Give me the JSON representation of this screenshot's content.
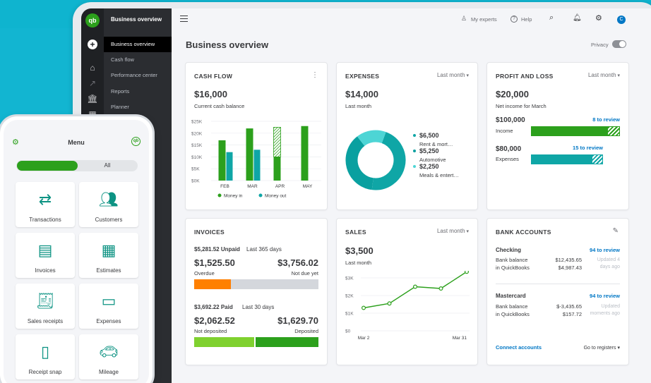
{
  "app": {
    "logo": "qb",
    "colors": {
      "brand_green": "#2ca01c",
      "teal": "#0fa6a6",
      "link_blue": "#0077c5",
      "orange": "#ff8000"
    }
  },
  "sidebar_nav": {
    "title": "Business overview",
    "items": [
      {
        "label": "Business overview",
        "active": true
      },
      {
        "label": "Cash flow"
      },
      {
        "label": "Performance center"
      },
      {
        "label": "Reports"
      },
      {
        "label": "Planner"
      }
    ],
    "icons": [
      "plus-icon",
      "home-icon",
      "chart-icon",
      "bank-icon",
      "grid-icon"
    ]
  },
  "topbar": {
    "my_experts": "My experts",
    "help": "Help",
    "avatar_initial": "C"
  },
  "page": {
    "title": "Business overview",
    "privacy_label": "Privacy"
  },
  "cash_flow": {
    "title": "CASH FLOW",
    "amount": "$16,000",
    "caption": "Current cash balance",
    "legend_in": "Money in",
    "legend_out": "Money out"
  },
  "expenses": {
    "title": "EXPENSES",
    "period": "Last month",
    "amount": "$14,000",
    "caption": "Last month",
    "items": [
      {
        "amount": "$6,500",
        "label": "Rent & mort…",
        "color": "#0fa6a6"
      },
      {
        "amount": "$5,250",
        "label": "Automotive",
        "color": "#0aa0a0"
      },
      {
        "amount": "$2,250",
        "label": "Meals & entert…",
        "color": "#4dd5d5"
      }
    ]
  },
  "profit_loss": {
    "title": "PROFIT AND LOSS",
    "period": "Last month",
    "amount": "$20,000",
    "caption": "Net income for March",
    "income_amount": "$100,000",
    "income_label": "Income",
    "income_review": "8 to review",
    "expenses_amount": "$80,000",
    "expenses_label": "Expenses",
    "expenses_review": "15 to review"
  },
  "invoices": {
    "title": "INVOICES",
    "unpaid_amount": "$5,281.52 Unpaid",
    "unpaid_period": "Last 365 days",
    "overdue_amount": "$1,525.50",
    "overdue_label": "Overdue",
    "not_due_amount": "$3,756.02",
    "not_due_label": "Not due yet",
    "paid_amount": "$3,692.22 Paid",
    "paid_period": "Last 30 days",
    "not_deposited_amount": "$2,062.52",
    "not_deposited_label": "Not deposited",
    "deposited_amount": "$1,629.70",
    "deposited_label": "Deposited"
  },
  "sales": {
    "title": "SALES",
    "period": "Last month",
    "amount": "$3,500",
    "caption": "Last month"
  },
  "bank_accounts": {
    "title": "BANK ACCOUNTS",
    "accounts": [
      {
        "name": "Checking",
        "review": "94 to review",
        "bank_balance_label": "Bank balance",
        "qb_label": "in QuickBooks",
        "bank_balance": "$12,435.65",
        "qb_balance": "$4,987.43",
        "updated": "Updated 4 days ago"
      },
      {
        "name": "Mastercard",
        "review": "94 to review",
        "bank_balance_label": "Bank balance",
        "qb_label": "in QuickBooks",
        "bank_balance": "$-3,435.65",
        "qb_balance": "$157.72",
        "updated": "Updated moments ago"
      }
    ],
    "connect": "Connect accounts",
    "registers": "Go to registers"
  },
  "phone": {
    "title": "Menu",
    "toggle_all": "All",
    "tiles": [
      {
        "label": "Transactions",
        "icon": "arrows-icon"
      },
      {
        "label": "Customers",
        "icon": "people-icon"
      },
      {
        "label": "Invoices",
        "icon": "invoice-icon"
      },
      {
        "label": "Estimates",
        "icon": "calculator-icon"
      },
      {
        "label": "Sales receipts",
        "icon": "receipt-icon"
      },
      {
        "label": "Expenses",
        "icon": "wallet-icon"
      },
      {
        "label": "Receipt snap",
        "icon": "phone-icon"
      },
      {
        "label": "Mileage",
        "icon": "car-icon"
      }
    ]
  },
  "chart_data": [
    {
      "type": "bar",
      "title": "CASH FLOW",
      "categories": [
        "FEB",
        "MAR",
        "APR",
        "MAY"
      ],
      "series": [
        {
          "name": "Money in",
          "values": [
            17,
            22,
            22.5,
            23
          ],
          "color": "#2ca01c"
        },
        {
          "name": "Money out",
          "values": [
            12,
            13,
            0,
            0
          ],
          "color": "#0fa6a6"
        }
      ],
      "projected_apr_in_solid": 10,
      "yticks": [
        "$25K",
        "$20K",
        "$15K",
        "$10K",
        "$5K",
        "$0K"
      ],
      "ylim": [
        0,
        25
      ],
      "legend": "bottom"
    },
    {
      "type": "pie",
      "title": "EXPENSES",
      "labels": [
        "Rent & mort…",
        "Automotive",
        "Meals & entert…"
      ],
      "values": [
        6500,
        5250,
        2250
      ]
    },
    {
      "type": "line",
      "title": "SALES",
      "x_labels": [
        "Mar 2",
        "Mar 31"
      ],
      "values": [
        1.3,
        1.55,
        2.5,
        2.4,
        3.35
      ],
      "yticks": [
        "$3K",
        "$2K",
        "$1K",
        "$0"
      ],
      "ylim": [
        0,
        3.5
      ]
    }
  ]
}
